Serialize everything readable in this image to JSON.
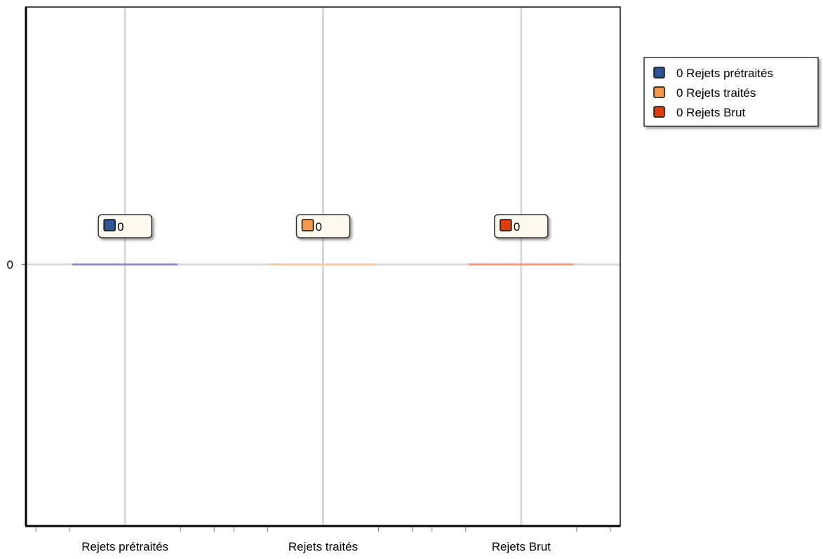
{
  "chart_data": {
    "type": "bar",
    "categories": [
      "Rejets prétraités",
      "Rejets traités",
      "Rejets Brut"
    ],
    "series": [
      {
        "name": "Rejets prétraités",
        "values": [
          0,
          null,
          null
        ]
      },
      {
        "name": "Rejets traités",
        "values": [
          null,
          0,
          null
        ]
      },
      {
        "name": "Rejets Brut",
        "values": [
          null,
          null,
          0
        ]
      }
    ],
    "values": [
      0,
      0,
      0
    ],
    "data_labels": [
      "0",
      "0",
      "0"
    ],
    "y_ticks": [
      "0"
    ],
    "ylim": [
      -1,
      1
    ],
    "grid": true,
    "legend_position": "top-right",
    "legend": [
      {
        "label": "0 Rejets prétraités",
        "color": "#2f5597"
      },
      {
        "label": "0 Rejets traités",
        "color": "#f79646"
      },
      {
        "label": "0 Rejets Brut",
        "color": "#e03c0a"
      }
    ],
    "colors": [
      "#2f5597",
      "#f79646",
      "#e03c0a"
    ],
    "bar_line_colors": [
      "#8e8ecf",
      "#f8c9a0",
      "#f09a7e"
    ],
    "label_background": "#fffaf0",
    "title": "",
    "xlabel": "",
    "ylabel": ""
  }
}
